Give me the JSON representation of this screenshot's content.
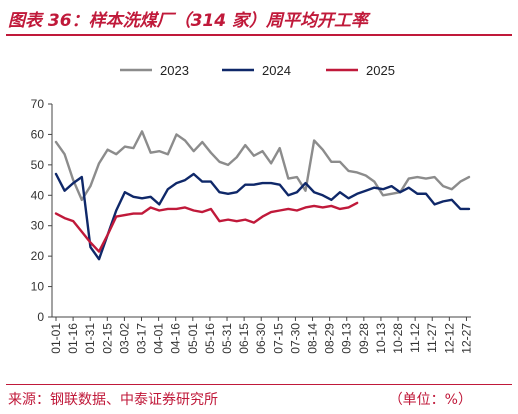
{
  "header": {
    "title": "图表 36：样本洗煤厂（314 家）周平均开工率"
  },
  "footer": {
    "source": "来源：钢联数据、中泰证券研究所",
    "unit": "（单位：%）"
  },
  "chart_data": {
    "type": "line",
    "title": "图表 36：样本洗煤厂（314 家）周平均开工率",
    "xlabel": "",
    "ylabel": "",
    "ylim": [
      0,
      70
    ],
    "yticks": [
      0,
      10,
      20,
      30,
      40,
      50,
      60,
      70
    ],
    "grid": false,
    "legend_position": "top",
    "x_ticks": [
      "01-01",
      "01-16",
      "01-31",
      "02-15",
      "03-02",
      "03-17",
      "04-01",
      "04-16",
      "05-01",
      "05-16",
      "05-31",
      "06-15",
      "06-30",
      "07-15",
      "07-30",
      "08-14",
      "08-29",
      "09-13",
      "09-28",
      "10-13",
      "10-28",
      "11-12",
      "11-27",
      "12-12",
      "12-27"
    ],
    "series": [
      {
        "name": "2023",
        "color": "#8c8c8c",
        "values": [
          57.5,
          53.5,
          45,
          38.5,
          43,
          50.5,
          55,
          53.5,
          56,
          55.5,
          61,
          54,
          54.5,
          53.5,
          60,
          58,
          54.5,
          57.5,
          54,
          51,
          50,
          52.5,
          56.5,
          53,
          54.5,
          50.5,
          55.5,
          45.5,
          46,
          41.5,
          58,
          55,
          51,
          51,
          48,
          47.5,
          46.5,
          44.5,
          40,
          40.5,
          41,
          45.5,
          46,
          45.5,
          46,
          43,
          42,
          44.5,
          46
        ]
      },
      {
        "name": "2024",
        "color": "#0f2869",
        "values": [
          47,
          41.5,
          44,
          46,
          23,
          19,
          27,
          35,
          41,
          39.5,
          39,
          39.5,
          37,
          42,
          44,
          45,
          47,
          44.5,
          44.5,
          41,
          40.5,
          41,
          43.5,
          43.5,
          44,
          44,
          43.5,
          40,
          41,
          44,
          41,
          40,
          38.5,
          41,
          39,
          40.5,
          41.5,
          42.5,
          42,
          43,
          41,
          42.5,
          40.5,
          40.5,
          37,
          38,
          38.5,
          35.5,
          35.5
        ]
      },
      {
        "name": "2025",
        "color": "#c0193a",
        "values": [
          34,
          32.5,
          31.5,
          28,
          24.5,
          21.5,
          27,
          33,
          33.5,
          34,
          34,
          36,
          35,
          35.5,
          35.5,
          36,
          35,
          34.5,
          35.5,
          31.5,
          32,
          31.5,
          32,
          31,
          33,
          34.5,
          35,
          35.5,
          35,
          36,
          36.5,
          36,
          36.5,
          35.5,
          36,
          37.5
        ]
      }
    ]
  }
}
